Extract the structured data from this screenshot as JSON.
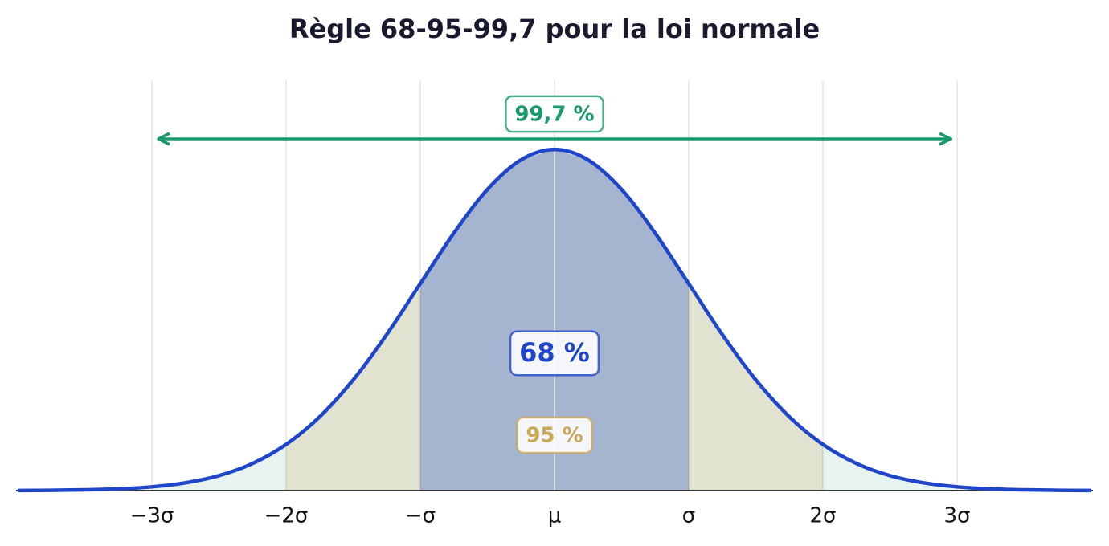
{
  "chart_data": {
    "type": "area",
    "title": "Règle 68-95-99,7 pour la loi normale",
    "x": [
      -4,
      -3.75,
      -3.5,
      -3.25,
      -3,
      -2.75,
      -2.5,
      -2.25,
      -2,
      -1.75,
      -1.5,
      -1.25,
      -1,
      -0.75,
      -0.5,
      -0.25,
      0,
      0.25,
      0.5,
      0.75,
      1,
      1.25,
      1.5,
      1.75,
      2,
      2.25,
      2.5,
      2.75,
      3,
      3.25,
      3.5,
      3.75,
      4
    ],
    "values": [
      0.0001,
      0.0004,
      0.0009,
      0.002,
      0.0044,
      0.0091,
      0.0175,
      0.0317,
      0.054,
      0.0863,
      0.1295,
      0.1826,
      0.242,
      0.3011,
      0.3521,
      0.3867,
      0.3989,
      0.3867,
      0.3521,
      0.3011,
      0.242,
      0.1826,
      0.1295,
      0.0863,
      0.054,
      0.0317,
      0.0175,
      0.0091,
      0.0044,
      0.002,
      0.0009,
      0.0004,
      0.0001
    ],
    "color": "#1f45c9",
    "xlim": [
      -4,
      4
    ],
    "ylim": [
      0,
      0.4
    ],
    "xticks": [
      {
        "value": -3,
        "label": "−3σ"
      },
      {
        "value": -2,
        "label": "−2σ"
      },
      {
        "value": -1,
        "label": "−σ"
      },
      {
        "value": 0,
        "label": "μ"
      },
      {
        "value": 1,
        "label": "σ"
      },
      {
        "value": 2,
        "label": "2σ"
      },
      {
        "value": 3,
        "label": "3σ"
      }
    ],
    "grid": true,
    "regions": [
      {
        "label": "68 %",
        "from": -1,
        "to": 1,
        "fill": "#a5b4cf",
        "color": "#1f45c9"
      },
      {
        "label": "95 %",
        "from": -2,
        "to": 2,
        "fill": "#e1e3d0",
        "color": "#c9a85a"
      },
      {
        "label": "99,7 %",
        "from": -3,
        "to": 3,
        "fill": "#e6f3ef",
        "color": "#1a9a6c",
        "arrow": true
      }
    ]
  }
}
